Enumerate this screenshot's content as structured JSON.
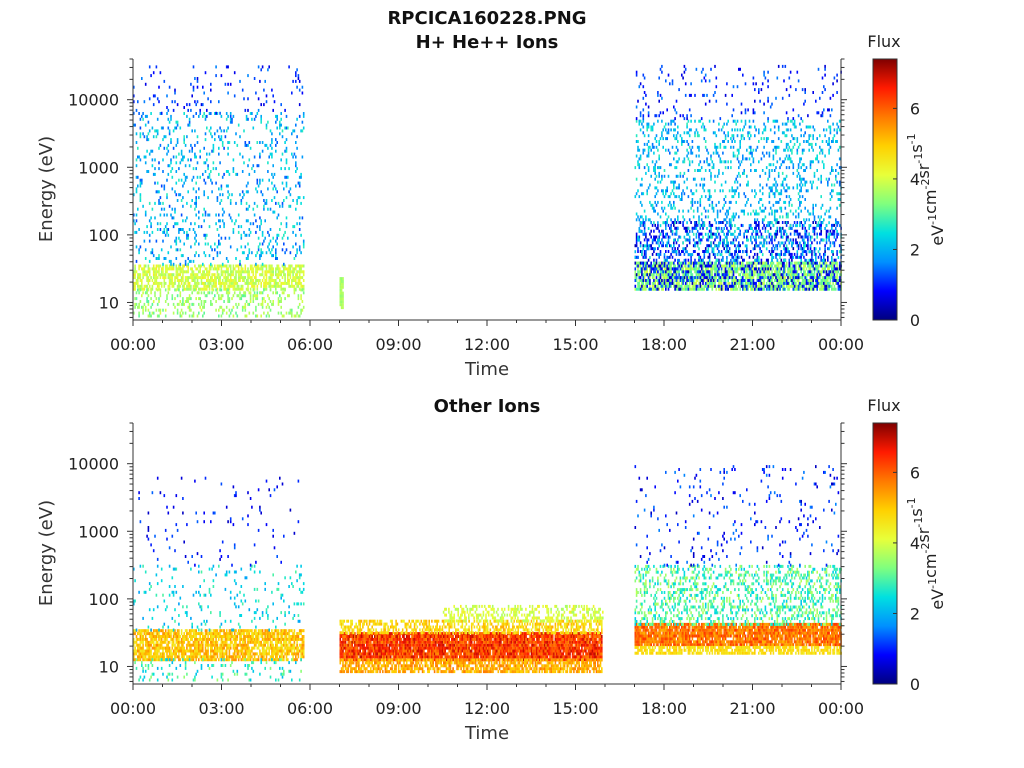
{
  "figure": {
    "filename": "RPCICA160228.PNG"
  },
  "palette": {
    "stops": [
      "#00007f",
      "#0000ff",
      "#0090ff",
      "#00e0e0",
      "#7fff7f",
      "#e8ff3a",
      "#ffd000",
      "#ff7a00",
      "#ff1a00",
      "#7f0000"
    ]
  },
  "chart_data": [
    {
      "type": "heatmap",
      "title": "H+ He++ Ions",
      "xlabel": "Time",
      "ylabel": "Energy (eV)",
      "x_ticks": [
        "00:00",
        "03:00",
        "06:00",
        "09:00",
        "12:00",
        "15:00",
        "18:00",
        "21:00",
        "00:00"
      ],
      "xlim_hours": [
        0,
        24
      ],
      "ylim_eV": [
        5.5,
        40000
      ],
      "y_scale": "log",
      "y_ticks": [
        10,
        100,
        1000,
        10000
      ],
      "y_tick_labels": [
        "10",
        "100",
        "1000",
        "10000"
      ],
      "colorbar": {
        "title": "Flux",
        "unit_label": [
          "eV",
          "-1",
          "cm",
          "-2",
          "sr",
          "-1",
          "s",
          "-1"
        ],
        "range": [
          0,
          7.4
        ],
        "ticks": [
          0,
          2,
          4,
          6
        ],
        "tick_labels": [
          "0",
          "2",
          "4",
          "6"
        ]
      },
      "regions": [
        {
          "t": [
            0.0,
            5.8
          ],
          "e": [
            15,
            35
          ],
          "flux": [
            3.5,
            4.4
          ],
          "density": 0.65
        },
        {
          "t": [
            0.0,
            5.8
          ],
          "e": [
            6,
            15
          ],
          "flux": [
            3.0,
            4.0
          ],
          "density": 0.25
        },
        {
          "t": [
            0.0,
            5.8
          ],
          "e": [
            35,
            6000
          ],
          "flux": [
            1.2,
            2.8
          ],
          "density": 0.12
        },
        {
          "t": [
            0.0,
            5.8
          ],
          "e": [
            6000,
            30000
          ],
          "flux": [
            0.6,
            1.6
          ],
          "density": 0.05
        },
        {
          "t": [
            7.0,
            7.1
          ],
          "e": [
            8,
            22
          ],
          "flux": [
            3.4,
            3.8
          ],
          "density": 0.9
        },
        {
          "t": [
            17.0,
            24.0
          ],
          "e": [
            15,
            40
          ],
          "flux": [
            2.8,
            4.0
          ],
          "density": 0.75
        },
        {
          "t": [
            17.0,
            24.0
          ],
          "e": [
            15,
            150
          ],
          "flux": [
            0.3,
            1.4
          ],
          "density": 0.25
        },
        {
          "t": [
            17.0,
            24.0
          ],
          "e": [
            40,
            5000
          ],
          "flux": [
            1.4,
            2.8
          ],
          "density": 0.18
        },
        {
          "t": [
            17.0,
            24.0
          ],
          "e": [
            5000,
            30000
          ],
          "flux": [
            0.5,
            1.6
          ],
          "density": 0.05
        }
      ]
    },
    {
      "type": "heatmap",
      "title": "Other Ions",
      "xlabel": "Time",
      "ylabel": "Energy (eV)",
      "x_ticks": [
        "00:00",
        "03:00",
        "06:00",
        "09:00",
        "12:00",
        "15:00",
        "18:00",
        "21:00",
        "00:00"
      ],
      "xlim_hours": [
        0,
        24
      ],
      "ylim_eV": [
        5.5,
        40000
      ],
      "y_scale": "log",
      "y_ticks": [
        10,
        100,
        1000,
        10000
      ],
      "y_tick_labels": [
        "10",
        "100",
        "1000",
        "10000"
      ],
      "colorbar": {
        "title": "Flux",
        "unit_label": [
          "eV",
          "-1",
          "cm",
          "-2",
          "sr",
          "-1",
          "s",
          "-1"
        ],
        "range": [
          0,
          7.4
        ],
        "ticks": [
          0,
          2,
          4,
          6
        ],
        "tick_labels": [
          "0",
          "2",
          "4",
          "6"
        ]
      },
      "regions": [
        {
          "t": [
            0.0,
            5.8
          ],
          "e": [
            12,
            33
          ],
          "flux": [
            4.4,
            5.6
          ],
          "density": 0.8
        },
        {
          "t": [
            0.0,
            5.8
          ],
          "e": [
            6,
            12
          ],
          "flux": [
            2.0,
            3.5
          ],
          "density": 0.12
        },
        {
          "t": [
            0.0,
            5.8
          ],
          "e": [
            33,
            300
          ],
          "flux": [
            1.8,
            3.0
          ],
          "density": 0.07
        },
        {
          "t": [
            0.0,
            5.8
          ],
          "e": [
            300,
            6000
          ],
          "flux": [
            0.4,
            1.4
          ],
          "density": 0.02
        },
        {
          "t": [
            7.0,
            15.9
          ],
          "e": [
            12,
            30
          ],
          "flux": [
            5.6,
            7.0
          ],
          "density": 0.95
        },
        {
          "t": [
            7.0,
            15.9
          ],
          "e": [
            8,
            12
          ],
          "flux": [
            4.8,
            5.8
          ],
          "density": 0.7
        },
        {
          "t": [
            7.0,
            15.9
          ],
          "e": [
            30,
            45
          ],
          "flux": [
            4.3,
            5.3
          ],
          "density": 0.55
        },
        {
          "t": [
            10.5,
            15.9
          ],
          "e": [
            45,
            80
          ],
          "flux": [
            3.6,
            4.4
          ],
          "density": 0.4
        },
        {
          "t": [
            17.0,
            24.0
          ],
          "e": [
            20,
            40
          ],
          "flux": [
            5.2,
            6.4
          ],
          "density": 0.9
        },
        {
          "t": [
            17.0,
            24.0
          ],
          "e": [
            15,
            20
          ],
          "flux": [
            4.4,
            5.0
          ],
          "density": 0.7
        },
        {
          "t": [
            17.0,
            24.0
          ],
          "e": [
            40,
            300
          ],
          "flux": [
            2.2,
            3.8
          ],
          "density": 0.3
        },
        {
          "t": [
            17.0,
            24.0
          ],
          "e": [
            300,
            9000
          ],
          "flux": [
            0.4,
            1.6
          ],
          "density": 0.04
        }
      ]
    }
  ]
}
